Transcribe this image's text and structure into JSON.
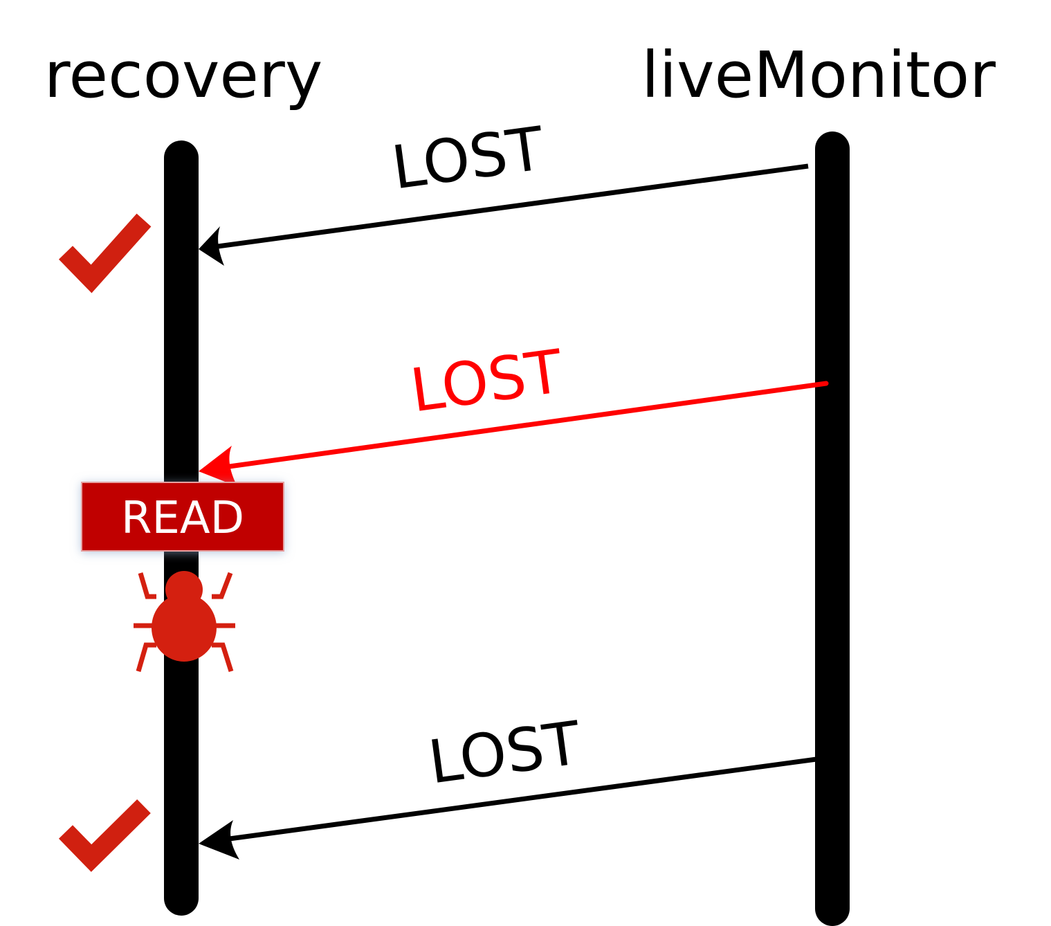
{
  "actors": {
    "left": "recovery",
    "right": "liveMonitor"
  },
  "messages": [
    {
      "label": "LOST",
      "color": "#000000",
      "status": "ok"
    },
    {
      "label": "LOST",
      "color": "#ff0000",
      "status": "bug"
    },
    {
      "label": "LOST",
      "color": "#000000",
      "status": "ok"
    }
  ],
  "event": {
    "label": "READ",
    "color": "#c00000"
  },
  "icons": {
    "check": "check-icon",
    "bug": "bug-icon"
  },
  "colors": {
    "check": "#d02010",
    "bug": "#d42010"
  }
}
